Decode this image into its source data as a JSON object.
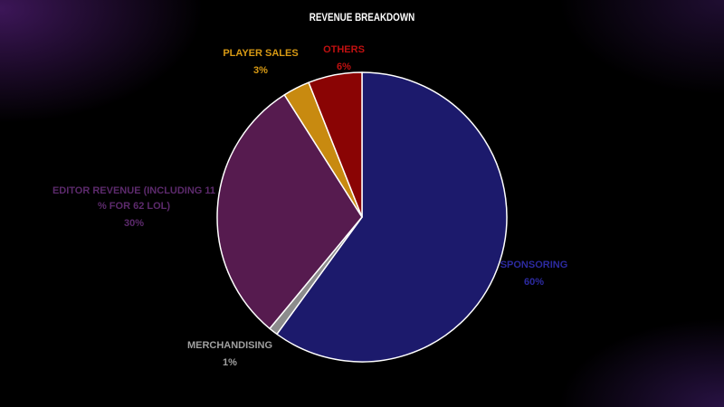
{
  "chart_data": {
    "type": "pie",
    "title": "REVENUE BREAKDOWN",
    "slices": [
      {
        "label": "SPONSORING",
        "value": 60,
        "value_label": "60%",
        "color": "#1c1a6c",
        "label_color": "#2c2aa0"
      },
      {
        "label": "MERCHANDISING",
        "value": 1,
        "value_label": "1%",
        "color": "#8c8c8c",
        "label_color": "#a0a0a0"
      },
      {
        "label_lines": [
          "EDITOR REVENUE (INCLUDING 11",
          "% FOR 62 LOL)"
        ],
        "value": 30,
        "value_label": "30%",
        "color": "#561b4f",
        "label_color": "#5c2a6c"
      },
      {
        "label": "PLAYER SALES",
        "value": 3,
        "value_label": "3%",
        "color": "#c88a10",
        "label_color": "#d89a14"
      },
      {
        "label": "OTHERS",
        "value": 6,
        "value_label": "6%",
        "color": "#8a0404",
        "label_color": "#c01010"
      }
    ],
    "start_angle_deg": 0,
    "direction": "clockwise",
    "slice_border_color": "#ffffff",
    "legend": "none"
  }
}
